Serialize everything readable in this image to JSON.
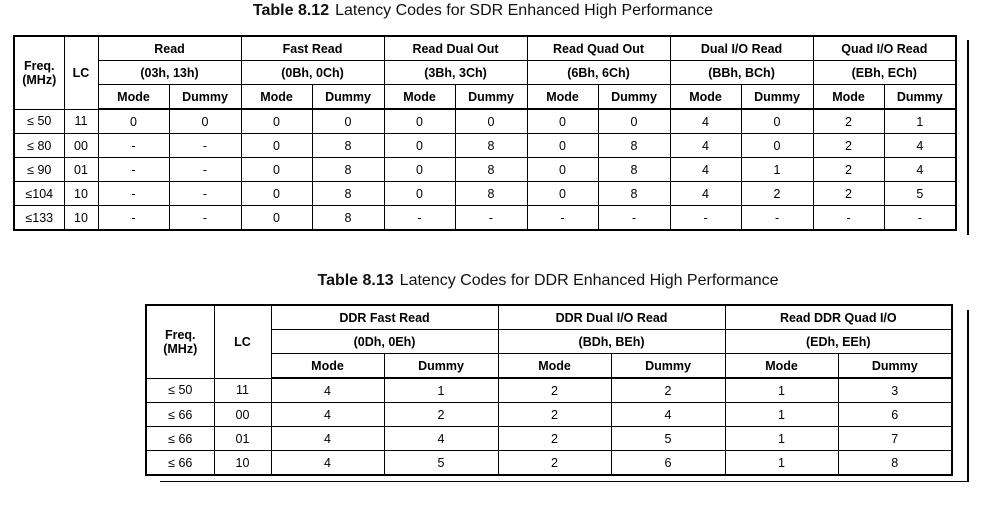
{
  "tables": [
    {
      "caption_label": "Table 8.12",
      "caption": "Latency Codes for SDR Enhanced High Performance",
      "freq_header": [
        "Freq.",
        "(MHz)"
      ],
      "lc_header": "LC",
      "groups": [
        {
          "name": "Read",
          "code": "(03h, 13h)"
        },
        {
          "name": "Fast Read",
          "code": "(0Bh, 0Ch)"
        },
        {
          "name": "Read Dual Out",
          "code": "(3Bh, 3Ch)"
        },
        {
          "name": "Read Quad Out",
          "code": "(6Bh, 6Ch)"
        },
        {
          "name": "Dual I/O Read",
          "code": "(BBh, BCh)"
        },
        {
          "name": "Quad I/O Read",
          "code": "(EBh, ECh)"
        }
      ],
      "sub_headers": [
        "Mode",
        "Dummy"
      ],
      "rows": [
        [
          "≤ 50",
          "11",
          "0",
          "0",
          "0",
          "0",
          "0",
          "0",
          "0",
          "0",
          "4",
          "0",
          "2",
          "1"
        ],
        [
          "≤ 80",
          "00",
          "-",
          "-",
          "0",
          "8",
          "0",
          "8",
          "0",
          "8",
          "4",
          "0",
          "2",
          "4"
        ],
        [
          "≤ 90",
          "01",
          "-",
          "-",
          "0",
          "8",
          "0",
          "8",
          "0",
          "8",
          "4",
          "1",
          "2",
          "4"
        ],
        [
          "≤104",
          "10",
          "-",
          "-",
          "0",
          "8",
          "0",
          "8",
          "0",
          "8",
          "4",
          "2",
          "2",
          "5"
        ],
        [
          "≤133",
          "10",
          "-",
          "-",
          "0",
          "8",
          "-",
          "-",
          "-",
          "-",
          "-",
          "-",
          "-",
          "-"
        ]
      ]
    },
    {
      "caption_label": "Table 8.13",
      "caption": "Latency Codes for DDR Enhanced High Performance",
      "freq_header": [
        "Freq.",
        "(MHz)"
      ],
      "lc_header": "LC",
      "groups": [
        {
          "name": "DDR Fast Read",
          "code": "(0Dh, 0Eh)"
        },
        {
          "name": "DDR Dual I/O Read",
          "code": "(BDh, BEh)"
        },
        {
          "name": "Read DDR Quad I/O",
          "code": "(EDh, EEh)"
        }
      ],
      "sub_headers": [
        "Mode",
        "Dummy"
      ],
      "rows": [
        [
          "≤ 50",
          "11",
          "4",
          "1",
          "2",
          "2",
          "1",
          "3"
        ],
        [
          "≤ 66",
          "00",
          "4",
          "2",
          "2",
          "4",
          "1",
          "6"
        ],
        [
          "≤ 66",
          "01",
          "4",
          "4",
          "2",
          "5",
          "1",
          "7"
        ],
        [
          "≤ 66",
          "10",
          "4",
          "5",
          "2",
          "6",
          "1",
          "8"
        ]
      ]
    }
  ]
}
